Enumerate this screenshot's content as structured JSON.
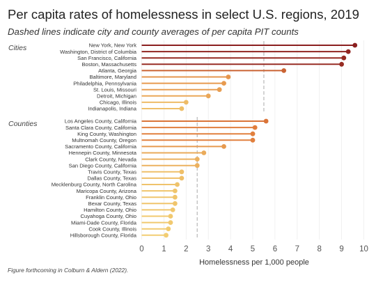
{
  "title": "Per capita rates of homelessness in select U.S. regions, 2019",
  "subtitle": "Dashed lines indicate city and county averages of per capita PIT counts",
  "footnote": "Figure forthcoming in Colburn & Aldern (2022).",
  "chart_data": {
    "type": "lollipop",
    "xlabel": "Homelessness per 1,000 people",
    "xlim": [
      0,
      10
    ],
    "xticks": [
      "0",
      "1",
      "2",
      "3",
      "4",
      "5",
      "6",
      "7",
      "8",
      "9",
      "10"
    ],
    "grid": true,
    "groups": [
      {
        "label": "Cities",
        "average": 5.5,
        "items": [
          {
            "name": "New York, New York",
            "value": 9.6
          },
          {
            "name": "Washington, District of Columbia",
            "value": 9.3
          },
          {
            "name": "San Francisco, California",
            "value": 9.1
          },
          {
            "name": "Boston, Massachusetts",
            "value": 9.0
          },
          {
            "name": "Atlanta, Georgia",
            "value": 6.4
          },
          {
            "name": "Baltimore, Maryland",
            "value": 3.9
          },
          {
            "name": "Philadelphia, Pennsylvania",
            "value": 3.7
          },
          {
            "name": "St. Louis, Missouri",
            "value": 3.5
          },
          {
            "name": "Detroit, Michigan",
            "value": 3.0
          },
          {
            "name": "Chicago, Illinois",
            "value": 2.0
          },
          {
            "name": "Indianapolis, Indiana",
            "value": 1.8
          }
        ]
      },
      {
        "label": "Counties",
        "average": 2.5,
        "items": [
          {
            "name": "Los Angeles County, California",
            "value": 5.6
          },
          {
            "name": "Santa Clara County, California",
            "value": 5.1
          },
          {
            "name": "King County, Washington",
            "value": 5.0
          },
          {
            "name": "Multnomah County, Oregon",
            "value": 5.0
          },
          {
            "name": "Sacramento County, California",
            "value": 3.7
          },
          {
            "name": "Hennepin County, Minnesota",
            "value": 2.8
          },
          {
            "name": "Clark County, Nevada",
            "value": 2.5
          },
          {
            "name": "San Diego County, California",
            "value": 2.5
          },
          {
            "name": "Travis County, Texas",
            "value": 1.8
          },
          {
            "name": "Dallas County, Texas",
            "value": 1.8
          },
          {
            "name": "Mecklenburg County, North Carolina",
            "value": 1.6
          },
          {
            "name": "Maricopa County, Arizona",
            "value": 1.5
          },
          {
            "name": "Franklin County, Ohio",
            "value": 1.5
          },
          {
            "name": "Bexar County, Texas",
            "value": 1.5
          },
          {
            "name": "Hamilton County, Ohio",
            "value": 1.4
          },
          {
            "name": "Cuyahoga County, Ohio",
            "value": 1.3
          },
          {
            "name": "Miami-Dade County, Florida",
            "value": 1.3
          },
          {
            "name": "Cook County, Illinois",
            "value": 1.2
          },
          {
            "name": "Hillsborough County, Florida",
            "value": 1.1
          }
        ]
      }
    ],
    "colors": {
      "high": "#8b1f1f",
      "mid": "#e07a3a",
      "low": "#f2cf73",
      "average_line": "#bdbdbd",
      "grid": "#ececec"
    }
  }
}
